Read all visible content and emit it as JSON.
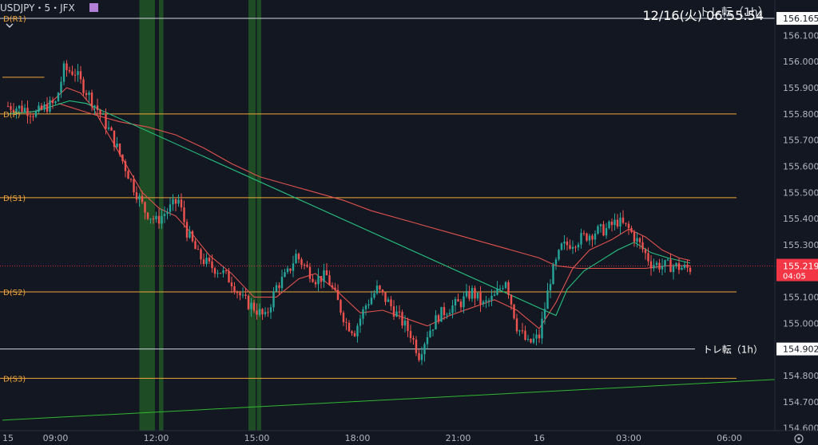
{
  "header": {
    "symbol": "USDJPY・5・JFX",
    "datetime": "12/16(火) 06:55:54",
    "toggle_icon": "chevron-down-icon",
    "settings_icon": "gear-icon"
  },
  "colors": {
    "background": "#131722",
    "axis_text": "#b2b5be",
    "level_orange": "#f2a53a",
    "level_white": "#d1d4dc",
    "trend_green": "#2fb82f",
    "ma_red": "#e0524e",
    "ma_green": "#26c281",
    "candle_up": "#26a69a",
    "candle_down": "#ef5350",
    "session_green": "#1e4d25",
    "price_badge": "#f23645"
  },
  "chart_data": {
    "type": "candlestick",
    "ylim": [
      154.59,
      156.22
    ],
    "y_ticks": [
      "156.165",
      "156.100",
      "156.000",
      "155.900",
      "155.800",
      "155.700",
      "155.600",
      "155.500",
      "155.400",
      "155.300",
      "155.219",
      "155.100",
      "155.000",
      "154.902",
      "154.800",
      "154.700",
      "154.600"
    ],
    "x_ticks": [
      {
        "label": "15",
        "bar": 0
      },
      {
        "label": "09:00",
        "bar": 17
      },
      {
        "label": "12:00",
        "bar": 53
      },
      {
        "label": "15:00",
        "bar": 89
      },
      {
        "label": "18:00",
        "bar": 125
      },
      {
        "label": "21:00",
        "bar": 161
      },
      {
        "label": "16",
        "bar": 190
      },
      {
        "label": "03:00",
        "bar": 222
      },
      {
        "label": "06:00",
        "bar": 258
      }
    ],
    "bars_total": 312,
    "levels": [
      {
        "name": "D(R1)",
        "price": 156.165,
        "color": "#d1d4dc",
        "label": "D(R1)",
        "axis_label": "156.165"
      },
      {
        "name": "D(P)",
        "price": 155.8,
        "color": "#f2a53a",
        "label": "D(P)"
      },
      {
        "name": "D(S1)",
        "price": 155.48,
        "color": "#f2a53a",
        "label": "D(S1)"
      },
      {
        "name": "D(S2)",
        "price": 155.12,
        "color": "#f2a53a",
        "label": "D(S2)"
      },
      {
        "name": "D(S3)",
        "price": 154.79,
        "color": "#f2a53a",
        "label": "D(S3)"
      },
      {
        "name": "トレ転（1h）",
        "price": 154.902,
        "color": "#d1d4dc",
        "label": "トレ転（1h）",
        "axis_label": "154.902"
      }
    ],
    "short_line": {
      "price": 155.94,
      "from_bar": -2,
      "to_bar": 13
    },
    "trendline": {
      "from": {
        "bar": -2,
        "price": 154.63
      },
      "to": {
        "bar": 318,
        "price": 154.81
      }
    },
    "current_price": {
      "price": 155.219,
      "label": "155.219",
      "countdown": "04:05"
    },
    "session_zones": [
      {
        "from_bar": 47,
        "to_bar": 52
      },
      {
        "from_bar": 54,
        "to_bar": 55
      },
      {
        "from_bar": 86,
        "to_bar": 88
      },
      {
        "from_bar": 89,
        "to_bar": 90
      }
    ],
    "close_anchors": [
      [
        0,
        155.83
      ],
      [
        6,
        155.82
      ],
      [
        10,
        155.8
      ],
      [
        14,
        155.83
      ],
      [
        17,
        155.84
      ],
      [
        20,
        155.97
      ],
      [
        24,
        155.96
      ],
      [
        26,
        155.92
      ],
      [
        29,
        155.87
      ],
      [
        33,
        155.8
      ],
      [
        37,
        155.72
      ],
      [
        41,
        155.62
      ],
      [
        45,
        155.52
      ],
      [
        49,
        155.43
      ],
      [
        53,
        155.39
      ],
      [
        57,
        155.43
      ],
      [
        61,
        155.47
      ],
      [
        64,
        155.35
      ],
      [
        68,
        155.26
      ],
      [
        72,
        155.22
      ],
      [
        76,
        155.2
      ],
      [
        80,
        155.16
      ],
      [
        84,
        155.09
      ],
      [
        88,
        155.06
      ],
      [
        92,
        155.02
      ],
      [
        96,
        155.14
      ],
      [
        100,
        155.19
      ],
      [
        103,
        155.26
      ],
      [
        106,
        155.22
      ],
      [
        110,
        155.17
      ],
      [
        114,
        155.18
      ],
      [
        118,
        155.08
      ],
      [
        121,
        155.0
      ],
      [
        124,
        154.97
      ],
      [
        128,
        155.07
      ],
      [
        132,
        155.13
      ],
      [
        136,
        155.08
      ],
      [
        140,
        155.02
      ],
      [
        144,
        154.96
      ],
      [
        147,
        154.88
      ],
      [
        150,
        154.96
      ],
      [
        154,
        155.03
      ],
      [
        158,
        155.06
      ],
      [
        162,
        155.08
      ],
      [
        166,
        155.12
      ],
      [
        170,
        155.07
      ],
      [
        174,
        155.1
      ],
      [
        178,
        155.17
      ],
      [
        182,
        154.99
      ],
      [
        186,
        154.92
      ],
      [
        190,
        154.95
      ],
      [
        194,
        155.17
      ],
      [
        198,
        155.29
      ],
      [
        202,
        155.31
      ],
      [
        206,
        155.33
      ],
      [
        210,
        155.35
      ],
      [
        214,
        155.36
      ],
      [
        218,
        155.39
      ],
      [
        222,
        155.36
      ],
      [
        226,
        155.3
      ],
      [
        230,
        155.23
      ],
      [
        234,
        155.22
      ],
      [
        238,
        155.22
      ],
      [
        242,
        155.21
      ],
      [
        244,
        155.21
      ]
    ],
    "ma_fast": [
      [
        0,
        155.8
      ],
      [
        10,
        155.81
      ],
      [
        16,
        155.85
      ],
      [
        21,
        155.9
      ],
      [
        26,
        155.88
      ],
      [
        30,
        155.83
      ],
      [
        36,
        155.72
      ],
      [
        42,
        155.61
      ],
      [
        48,
        155.5
      ],
      [
        54,
        155.44
      ],
      [
        60,
        155.41
      ],
      [
        66,
        155.34
      ],
      [
        72,
        155.26
      ],
      [
        80,
        155.19
      ],
      [
        88,
        155.1
      ],
      [
        96,
        155.1
      ],
      [
        104,
        155.17
      ],
      [
        110,
        155.19
      ],
      [
        118,
        155.12
      ],
      [
        126,
        155.04
      ],
      [
        134,
        155.05
      ],
      [
        142,
        155.02
      ],
      [
        150,
        154.99
      ],
      [
        158,
        155.03
      ],
      [
        166,
        155.06
      ],
      [
        174,
        155.09
      ],
      [
        182,
        155.05
      ],
      [
        190,
        154.98
      ],
      [
        196,
        155.08
      ],
      [
        202,
        155.21
      ],
      [
        208,
        155.28
      ],
      [
        216,
        155.32
      ],
      [
        222,
        155.36
      ],
      [
        228,
        155.33
      ],
      [
        234,
        155.28
      ],
      [
        240,
        155.25
      ],
      [
        244,
        155.24
      ]
    ],
    "ma_slow": [
      [
        18,
        155.84
      ],
      [
        30,
        155.8
      ],
      [
        40,
        155.77
      ],
      [
        50,
        155.75
      ],
      [
        60,
        155.72
      ],
      [
        70,
        155.67
      ],
      [
        80,
        155.61
      ],
      [
        90,
        155.56
      ],
      [
        100,
        155.53
      ],
      [
        110,
        155.5
      ],
      [
        120,
        155.47
      ],
      [
        130,
        155.43
      ],
      [
        140,
        155.4
      ],
      [
        150,
        155.37
      ],
      [
        160,
        155.34
      ],
      [
        170,
        155.31
      ],
      [
        180,
        155.28
      ],
      [
        190,
        155.25
      ],
      [
        196,
        155.22
      ],
      [
        204,
        155.21
      ],
      [
        212,
        155.21
      ],
      [
        220,
        155.21
      ],
      [
        228,
        155.21
      ],
      [
        236,
        155.22
      ],
      [
        244,
        155.22
      ]
    ],
    "ma_green": [
      [
        0,
        155.8
      ],
      [
        10,
        155.81
      ],
      [
        16,
        155.83
      ],
      [
        22,
        155.85
      ],
      [
        28,
        155.84
      ],
      [
        196,
        155.03
      ],
      [
        200,
        155.13
      ],
      [
        206,
        155.2
      ],
      [
        212,
        155.24
      ],
      [
        218,
        155.28
      ],
      [
        224,
        155.31
      ],
      [
        230,
        155.27
      ],
      [
        236,
        155.25
      ],
      [
        244,
        155.23
      ]
    ]
  }
}
